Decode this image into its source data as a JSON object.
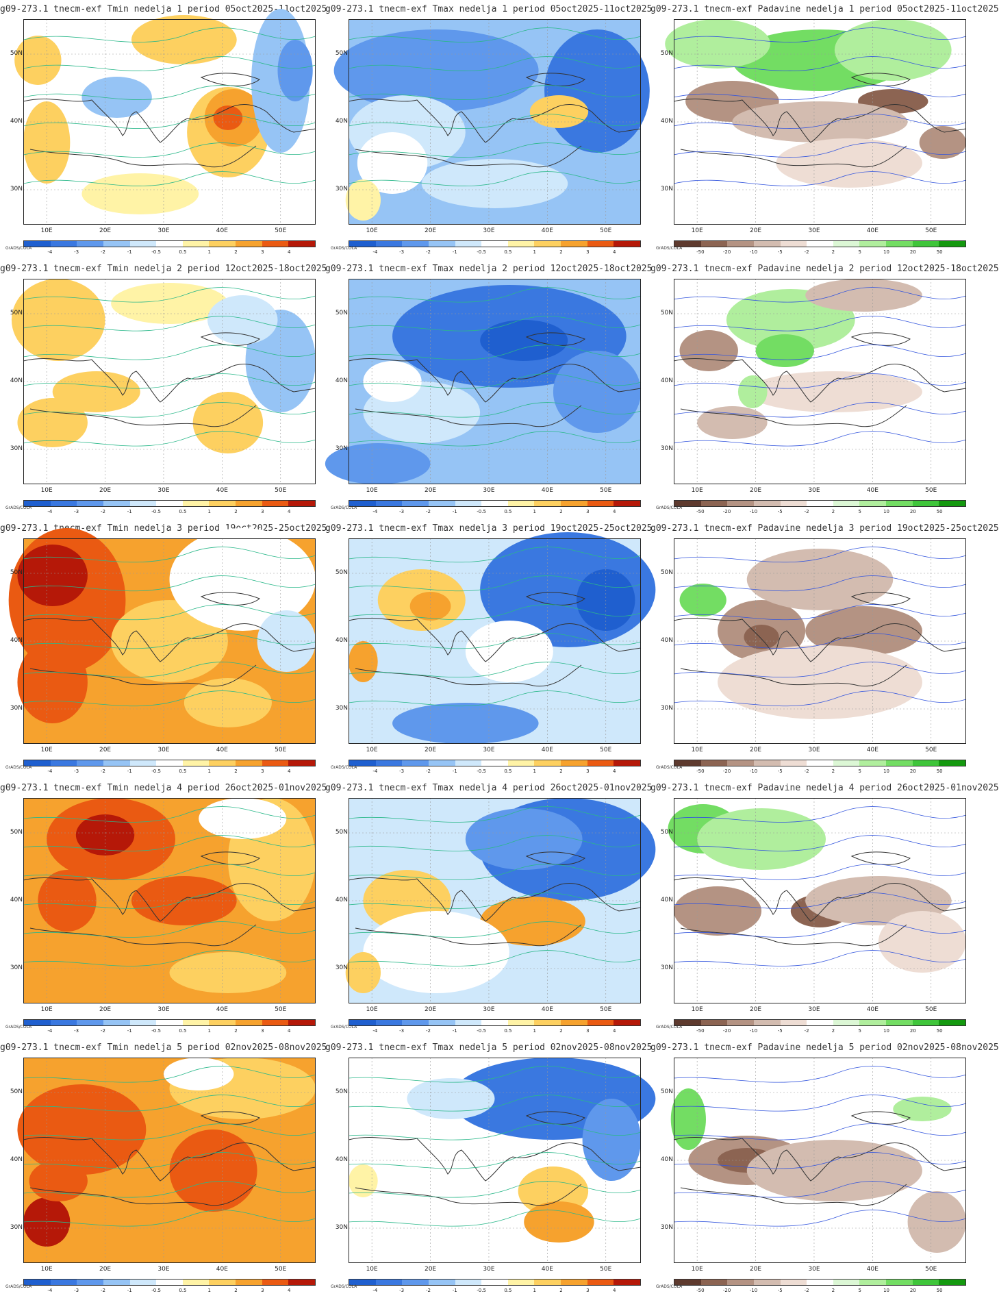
{
  "axes": {
    "ylabels": [
      "50N",
      "40N",
      "30N"
    ],
    "xlabels": [
      "10E",
      "20E",
      "30E",
      "40E",
      "50E"
    ]
  },
  "credit": "GrADS/COLA",
  "scales": {
    "temp": {
      "labels": [
        "-4",
        "-3",
        "-2",
        "-1",
        "-0.5",
        "0.5",
        "1",
        "2",
        "3",
        "4"
      ],
      "colors": [
        "#1f5fcf",
        "#3a78e0",
        "#5f98ec",
        "#96c4f5",
        "#cfe8fb",
        "#ffffff",
        "#fff3a6",
        "#fdd060",
        "#f6a22e",
        "#ea5a12",
        "#b51808"
      ]
    },
    "precip": {
      "labels": [
        "-50",
        "-20",
        "-10",
        "-5",
        "-2",
        "2",
        "5",
        "10",
        "20",
        "50"
      ],
      "colors": [
        "#5e3a2e",
        "#8c6452",
        "#b49383",
        "#d3bcb0",
        "#eeddd4",
        "#ffffff",
        "#dcf7d5",
        "#b0ee9d",
        "#73dd63",
        "#3fc53a",
        "#14990f"
      ]
    }
  },
  "rows": [
    {
      "titles": [
        "g09-273.1 tnecm-exf Tmin nedelja 1 period 05oct2025-11oct2025",
        "g09-273.1 tnecm-exf Tmax nedelja 1 period 05oct2025-11oct2025",
        "g09-273.1 tnecm-exf Padavine nedelja 1 period 05oct2025-11oct2025"
      ]
    },
    {
      "titles": [
        "g09-273.1 tnecm-exf Tmin nedelja 2 period 12oct2025-18oct2025",
        "g09-273.1 tnecm-exf Tmax nedelja 2 period 12oct2025-18oct2025",
        "g09-273.1 tnecm-exf Padavine nedelja 2 period 12oct2025-18oct2025"
      ]
    },
    {
      "titles": [
        "g09-273.1 tnecm-exf Tmin nedelja 3 period 19oct2025-25oct2025",
        "g09-273.1 tnecm-exf Tmax nedelja 3 period 19oct2025-25oct2025",
        "g09-273.1 tnecm-exf Padavine nedelja 3 period 19oct2025-25oct2025"
      ]
    },
    {
      "titles": [
        "g09-273.1 tnecm-exf Tmin nedelja 4 period 26oct2025-01nov2025",
        "g09-273.1 tnecm-exf Tmax nedelja 4 period 26oct2025-01nov2025",
        "g09-273.1 tnecm-exf Padavine nedelja 4 period 26oct2025-01nov2025"
      ]
    },
    {
      "titles": [
        "g09-273.1 tnecm-exf Tmin nedelja 5 period 02nov2025-08nov2025",
        "g09-273.1 tnecm-exf Tmax nedelja 5 period 02nov2025-08nov2025",
        "g09-273.1 tnecm-exf Padavine nedelja 5 period 02nov2025-08nov2025"
      ]
    }
  ],
  "fields": [
    [
      {
        "bg": "#ffffff",
        "blobs": [
          [
            "#fdd060",
            0.05,
            0.2,
            0.08,
            0.12
          ],
          [
            "#fdd060",
            0.55,
            0.1,
            0.18,
            0.12
          ],
          [
            "#fdd060",
            0.7,
            0.55,
            0.14,
            0.22
          ],
          [
            "#f6a22e",
            0.72,
            0.48,
            0.1,
            0.14
          ],
          [
            "#ea5a12",
            0.7,
            0.48,
            0.05,
            0.06
          ],
          [
            "#96c4f5",
            0.32,
            0.38,
            0.12,
            0.1
          ],
          [
            "#96c4f5",
            0.88,
            0.3,
            0.1,
            0.35
          ],
          [
            "#5f98ec",
            0.93,
            0.25,
            0.06,
            0.15
          ],
          [
            "#fdd060",
            0.08,
            0.6,
            0.08,
            0.2
          ],
          [
            "#fff3a6",
            0.4,
            0.85,
            0.2,
            0.1
          ]
        ]
      },
      {
        "bg": "#96c4f5",
        "blobs": [
          [
            "#5f98ec",
            0.3,
            0.25,
            0.35,
            0.2
          ],
          [
            "#3a78e0",
            0.85,
            0.35,
            0.18,
            0.3
          ],
          [
            "#cfe8fb",
            0.2,
            0.55,
            0.2,
            0.18
          ],
          [
            "#ffffff",
            0.15,
            0.7,
            0.12,
            0.15
          ],
          [
            "#fdd060",
            0.72,
            0.45,
            0.1,
            0.08
          ],
          [
            "#fff3a6",
            0.05,
            0.88,
            0.06,
            0.1
          ],
          [
            "#cfe8fb",
            0.5,
            0.8,
            0.25,
            0.12
          ]
        ]
      },
      {
        "bg": "#ffffff",
        "blobs": [
          [
            "#73dd63",
            0.5,
            0.2,
            0.3,
            0.15
          ],
          [
            "#b0ee9d",
            0.15,
            0.12,
            0.18,
            0.12
          ],
          [
            "#b0ee9d",
            0.75,
            0.15,
            0.2,
            0.15
          ],
          [
            "#b49383",
            0.2,
            0.4,
            0.16,
            0.1
          ],
          [
            "#8c6452",
            0.75,
            0.4,
            0.12,
            0.06
          ],
          [
            "#b49383",
            0.92,
            0.6,
            0.08,
            0.08
          ],
          [
            "#d3bcb0",
            0.5,
            0.5,
            0.3,
            0.1
          ],
          [
            "#eeddd4",
            0.6,
            0.7,
            0.25,
            0.12
          ]
        ]
      }
    ],
    [
      {
        "bg": "#ffffff",
        "blobs": [
          [
            "#fdd060",
            0.12,
            0.2,
            0.16,
            0.2
          ],
          [
            "#fdd060",
            0.25,
            0.55,
            0.15,
            0.1
          ],
          [
            "#fff3a6",
            0.5,
            0.12,
            0.2,
            0.1
          ],
          [
            "#96c4f5",
            0.88,
            0.4,
            0.12,
            0.25
          ],
          [
            "#cfe8fb",
            0.75,
            0.2,
            0.12,
            0.12
          ],
          [
            "#fdd060",
            0.7,
            0.7,
            0.12,
            0.15
          ],
          [
            "#fdd060",
            0.1,
            0.7,
            0.12,
            0.12
          ]
        ]
      },
      {
        "bg": "#96c4f5",
        "blobs": [
          [
            "#3a78e0",
            0.55,
            0.28,
            0.4,
            0.25
          ],
          [
            "#1f5fcf",
            0.6,
            0.3,
            0.15,
            0.1
          ],
          [
            "#5f98ec",
            0.85,
            0.55,
            0.15,
            0.2
          ],
          [
            "#cfe8fb",
            0.25,
            0.65,
            0.2,
            0.15
          ],
          [
            "#ffffff",
            0.15,
            0.5,
            0.1,
            0.1
          ],
          [
            "#5f98ec",
            0.1,
            0.9,
            0.18,
            0.1
          ]
        ]
      },
      {
        "bg": "#ffffff",
        "blobs": [
          [
            "#b0ee9d",
            0.4,
            0.2,
            0.22,
            0.15
          ],
          [
            "#73dd63",
            0.38,
            0.35,
            0.1,
            0.08
          ],
          [
            "#b49383",
            0.12,
            0.35,
            0.1,
            0.1
          ],
          [
            "#d3bcb0",
            0.65,
            0.08,
            0.2,
            0.08
          ],
          [
            "#eeddd4",
            0.55,
            0.55,
            0.3,
            0.1
          ],
          [
            "#d3bcb0",
            0.2,
            0.7,
            0.12,
            0.08
          ],
          [
            "#b0ee9d",
            0.27,
            0.55,
            0.05,
            0.08
          ]
        ]
      }
    ],
    [
      {
        "bg": "#f6a22e",
        "blobs": [
          [
            "#ea5a12",
            0.15,
            0.3,
            0.2,
            0.35
          ],
          [
            "#b51808",
            0.1,
            0.18,
            0.12,
            0.15
          ],
          [
            "#ea5a12",
            0.1,
            0.7,
            0.12,
            0.2
          ],
          [
            "#fdd060",
            0.5,
            0.5,
            0.2,
            0.2
          ],
          [
            "#ffffff",
            0.75,
            0.2,
            0.25,
            0.25
          ],
          [
            "#cfe8fb",
            0.9,
            0.5,
            0.1,
            0.15
          ],
          [
            "#fdd060",
            0.7,
            0.8,
            0.15,
            0.12
          ]
        ]
      },
      {
        "bg": "#cfe8fb",
        "blobs": [
          [
            "#3a78e0",
            0.75,
            0.25,
            0.3,
            0.28
          ],
          [
            "#1f5fcf",
            0.88,
            0.3,
            0.1,
            0.15
          ],
          [
            "#fdd060",
            0.25,
            0.3,
            0.15,
            0.15
          ],
          [
            "#f6a22e",
            0.28,
            0.33,
            0.07,
            0.07
          ],
          [
            "#f6a22e",
            0.05,
            0.6,
            0.05,
            0.1
          ],
          [
            "#ffffff",
            0.55,
            0.55,
            0.15,
            0.15
          ],
          [
            "#5f98ec",
            0.4,
            0.9,
            0.25,
            0.1
          ]
        ]
      },
      {
        "bg": "#ffffff",
        "blobs": [
          [
            "#73dd63",
            0.1,
            0.3,
            0.08,
            0.08
          ],
          [
            "#b49383",
            0.3,
            0.45,
            0.15,
            0.15
          ],
          [
            "#8c6452",
            0.3,
            0.48,
            0.06,
            0.06
          ],
          [
            "#b49383",
            0.65,
            0.45,
            0.2,
            0.12
          ],
          [
            "#d3bcb0",
            0.5,
            0.2,
            0.25,
            0.15
          ],
          [
            "#eeddd4",
            0.5,
            0.7,
            0.35,
            0.18
          ]
        ]
      }
    ],
    [
      {
        "bg": "#f6a22e",
        "blobs": [
          [
            "#ea5a12",
            0.3,
            0.2,
            0.22,
            0.2
          ],
          [
            "#b51808",
            0.28,
            0.18,
            0.1,
            0.1
          ],
          [
            "#ea5a12",
            0.55,
            0.5,
            0.18,
            0.12
          ],
          [
            "#ea5a12",
            0.15,
            0.5,
            0.1,
            0.15
          ],
          [
            "#fdd060",
            0.85,
            0.3,
            0.15,
            0.3
          ],
          [
            "#ffffff",
            0.75,
            0.1,
            0.15,
            0.1
          ],
          [
            "#fdd060",
            0.7,
            0.85,
            0.2,
            0.1
          ]
        ]
      },
      {
        "bg": "#cfe8fb",
        "blobs": [
          [
            "#3a78e0",
            0.75,
            0.25,
            0.3,
            0.25
          ],
          [
            "#5f98ec",
            0.6,
            0.2,
            0.2,
            0.15
          ],
          [
            "#ea5a12",
            0.58,
            0.55,
            0.1,
            0.05
          ],
          [
            "#f6a22e",
            0.63,
            0.6,
            0.18,
            0.12
          ],
          [
            "#fdd060",
            0.2,
            0.5,
            0.15,
            0.15
          ],
          [
            "#ffffff",
            0.3,
            0.75,
            0.25,
            0.2
          ],
          [
            "#fdd060",
            0.05,
            0.85,
            0.06,
            0.1
          ]
        ]
      },
      {
        "bg": "#ffffff",
        "blobs": [
          [
            "#73dd63",
            0.1,
            0.15,
            0.12,
            0.12
          ],
          [
            "#b0ee9d",
            0.3,
            0.2,
            0.22,
            0.15
          ],
          [
            "#b49383",
            0.15,
            0.55,
            0.15,
            0.12
          ],
          [
            "#8c6452",
            0.5,
            0.55,
            0.1,
            0.08
          ],
          [
            "#d3bcb0",
            0.7,
            0.5,
            0.25,
            0.12
          ],
          [
            "#eeddd4",
            0.85,
            0.7,
            0.15,
            0.15
          ]
        ]
      }
    ],
    [
      {
        "bg": "#f6a22e",
        "blobs": [
          [
            "#ea5a12",
            0.2,
            0.35,
            0.22,
            0.22
          ],
          [
            "#ea5a12",
            0.65,
            0.55,
            0.15,
            0.2
          ],
          [
            "#b51808",
            0.08,
            0.8,
            0.08,
            0.12
          ],
          [
            "#fdd060",
            0.75,
            0.15,
            0.25,
            0.15
          ],
          [
            "#ffffff",
            0.6,
            0.08,
            0.12,
            0.08
          ],
          [
            "#ea5a12",
            0.12,
            0.6,
            0.1,
            0.1
          ]
        ]
      },
      {
        "bg": "#ffffff",
        "blobs": [
          [
            "#3a78e0",
            0.7,
            0.2,
            0.35,
            0.2
          ],
          [
            "#5f98ec",
            0.9,
            0.4,
            0.1,
            0.2
          ],
          [
            "#cfe8fb",
            0.35,
            0.2,
            0.15,
            0.1
          ],
          [
            "#fdd060",
            0.7,
            0.65,
            0.12,
            0.12
          ],
          [
            "#f6a22e",
            0.72,
            0.8,
            0.12,
            0.1
          ],
          [
            "#fff3a6",
            0.05,
            0.6,
            0.05,
            0.08
          ]
        ]
      },
      {
        "bg": "#ffffff",
        "blobs": [
          [
            "#73dd63",
            0.05,
            0.3,
            0.06,
            0.15
          ],
          [
            "#b49383",
            0.25,
            0.5,
            0.2,
            0.12
          ],
          [
            "#8c6452",
            0.25,
            0.5,
            0.1,
            0.06
          ],
          [
            "#d3bcb0",
            0.55,
            0.55,
            0.3,
            0.15
          ],
          [
            "#b0ee9d",
            0.85,
            0.25,
            0.1,
            0.06
          ],
          [
            "#d3bcb0",
            0.9,
            0.8,
            0.1,
            0.15
          ]
        ]
      }
    ]
  ]
}
